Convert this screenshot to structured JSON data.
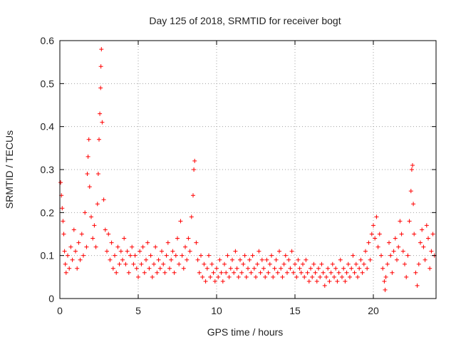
{
  "chart_data": {
    "type": "scatter",
    "title": "Day 125 of 2018, SRMTID for receiver bogt",
    "xlabel": "GPS time / hours",
    "ylabel": "SRMTID / TECUs",
    "xlim": [
      0,
      24
    ],
    "ylim": [
      0,
      0.6
    ],
    "xticks": [
      0,
      5,
      10,
      15,
      20
    ],
    "yticks": [
      0,
      0.1,
      0.2,
      0.3,
      0.4,
      0.5,
      0.6
    ],
    "grid": true,
    "marker": "+",
    "color": "#ff0000",
    "series": [
      {
        "name": "SRMTID",
        "points": [
          [
            0.05,
            0.27
          ],
          [
            0.1,
            0.24
          ],
          [
            0.15,
            0.21
          ],
          [
            0.2,
            0.18
          ],
          [
            0.25,
            0.15
          ],
          [
            0.3,
            0.11
          ],
          [
            0.35,
            0.08
          ],
          [
            0.4,
            0.06
          ],
          [
            0.5,
            0.1
          ],
          [
            0.6,
            0.07
          ],
          [
            0.7,
            0.12
          ],
          [
            0.8,
            0.09
          ],
          [
            0.9,
            0.16
          ],
          [
            1.0,
            0.11
          ],
          [
            1.1,
            0.07
          ],
          [
            1.2,
            0.13
          ],
          [
            1.3,
            0.09
          ],
          [
            1.4,
            0.15
          ],
          [
            1.5,
            0.1
          ],
          [
            1.6,
            0.2
          ],
          [
            1.7,
            0.12
          ],
          [
            1.75,
            0.29
          ],
          [
            1.8,
            0.33
          ],
          [
            1.85,
            0.37
          ],
          [
            1.9,
            0.26
          ],
          [
            2.0,
            0.19
          ],
          [
            2.1,
            0.14
          ],
          [
            2.2,
            0.17
          ],
          [
            2.3,
            0.12
          ],
          [
            2.4,
            0.22
          ],
          [
            2.45,
            0.29
          ],
          [
            2.5,
            0.37
          ],
          [
            2.55,
            0.43
          ],
          [
            2.6,
            0.49
          ],
          [
            2.62,
            0.54
          ],
          [
            2.65,
            0.58
          ],
          [
            2.7,
            0.41
          ],
          [
            2.8,
            0.23
          ],
          [
            2.9,
            0.16
          ],
          [
            3.0,
            0.11
          ],
          [
            3.1,
            0.15
          ],
          [
            3.2,
            0.09
          ],
          [
            3.3,
            0.13
          ],
          [
            3.4,
            0.07
          ],
          [
            3.5,
            0.1
          ],
          [
            3.6,
            0.06
          ],
          [
            3.7,
            0.12
          ],
          [
            3.8,
            0.08
          ],
          [
            3.9,
            0.11
          ],
          [
            4.0,
            0.09
          ],
          [
            4.1,
            0.14
          ],
          [
            4.2,
            0.08
          ],
          [
            4.3,
            0.11
          ],
          [
            4.4,
            0.06
          ],
          [
            4.5,
            0.1
          ],
          [
            4.6,
            0.12
          ],
          [
            4.7,
            0.08
          ],
          [
            4.8,
            0.1
          ],
          [
            4.9,
            0.07
          ],
          [
            5.0,
            0.05
          ],
          [
            5.1,
            0.11
          ],
          [
            5.2,
            0.08
          ],
          [
            5.3,
            0.12
          ],
          [
            5.4,
            0.06
          ],
          [
            5.5,
            0.09
          ],
          [
            5.6,
            0.13
          ],
          [
            5.7,
            0.07
          ],
          [
            5.8,
            0.1
          ],
          [
            5.9,
            0.05
          ],
          [
            6.0,
            0.08
          ],
          [
            6.1,
            0.12
          ],
          [
            6.2,
            0.06
          ],
          [
            6.3,
            0.09
          ],
          [
            6.4,
            0.07
          ],
          [
            6.5,
            0.11
          ],
          [
            6.6,
            0.08
          ],
          [
            6.7,
            0.06
          ],
          [
            6.8,
            0.1
          ],
          [
            6.9,
            0.13
          ],
          [
            7.0,
            0.07
          ],
          [
            7.1,
            0.09
          ],
          [
            7.2,
            0.11
          ],
          [
            7.3,
            0.06
          ],
          [
            7.4,
            0.1
          ],
          [
            7.5,
            0.14
          ],
          [
            7.6,
            0.08
          ],
          [
            7.7,
            0.18
          ],
          [
            7.8,
            0.1
          ],
          [
            7.9,
            0.07
          ],
          [
            8.0,
            0.12
          ],
          [
            8.1,
            0.09
          ],
          [
            8.2,
            0.14
          ],
          [
            8.3,
            0.11
          ],
          [
            8.4,
            0.19
          ],
          [
            8.5,
            0.24
          ],
          [
            8.55,
            0.3
          ],
          [
            8.6,
            0.32
          ],
          [
            8.7,
            0.13
          ],
          [
            8.8,
            0.09
          ],
          [
            8.9,
            0.06
          ],
          [
            9.0,
            0.1
          ],
          [
            9.1,
            0.05
          ],
          [
            9.2,
            0.08
          ],
          [
            9.3,
            0.04
          ],
          [
            9.4,
            0.07
          ],
          [
            9.5,
            0.1
          ],
          [
            9.6,
            0.05
          ],
          [
            9.7,
            0.08
          ],
          [
            9.8,
            0.06
          ],
          [
            9.9,
            0.04
          ],
          [
            10.0,
            0.07
          ],
          [
            10.1,
            0.05
          ],
          [
            10.2,
            0.09
          ],
          [
            10.3,
            0.06
          ],
          [
            10.4,
            0.04
          ],
          [
            10.5,
            0.08
          ],
          [
            10.6,
            0.06
          ],
          [
            10.7,
            0.1
          ],
          [
            10.8,
            0.05
          ],
          [
            10.9,
            0.07
          ],
          [
            11.0,
            0.09
          ],
          [
            11.1,
            0.06
          ],
          [
            11.2,
            0.11
          ],
          [
            11.3,
            0.07
          ],
          [
            11.4,
            0.05
          ],
          [
            11.5,
            0.09
          ],
          [
            11.6,
            0.06
          ],
          [
            11.7,
            0.08
          ],
          [
            11.8,
            0.1
          ],
          [
            11.9,
            0.05
          ],
          [
            12.0,
            0.07
          ],
          [
            12.1,
            0.09
          ],
          [
            12.2,
            0.06
          ],
          [
            12.3,
            0.1
          ],
          [
            12.4,
            0.07
          ],
          [
            12.5,
            0.05
          ],
          [
            12.6,
            0.08
          ],
          [
            12.7,
            0.11
          ],
          [
            12.8,
            0.06
          ],
          [
            12.9,
            0.09
          ],
          [
            13.0,
            0.07
          ],
          [
            13.1,
            0.05
          ],
          [
            13.2,
            0.09
          ],
          [
            13.3,
            0.06
          ],
          [
            13.4,
            0.08
          ],
          [
            13.5,
            0.1
          ],
          [
            13.6,
            0.05
          ],
          [
            13.7,
            0.07
          ],
          [
            13.8,
            0.09
          ],
          [
            13.9,
            0.06
          ],
          [
            14.0,
            0.11
          ],
          [
            14.1,
            0.07
          ],
          [
            14.2,
            0.05
          ],
          [
            14.3,
            0.08
          ],
          [
            14.4,
            0.1
          ],
          [
            14.5,
            0.06
          ],
          [
            14.6,
            0.09
          ],
          [
            14.7,
            0.07
          ],
          [
            14.8,
            0.11
          ],
          [
            14.9,
            0.06
          ],
          [
            15.0,
            0.08
          ],
          [
            15.1,
            0.05
          ],
          [
            15.2,
            0.09
          ],
          [
            15.3,
            0.07
          ],
          [
            15.4,
            0.06
          ],
          [
            15.5,
            0.08
          ],
          [
            15.6,
            0.05
          ],
          [
            15.7,
            0.09
          ],
          [
            15.8,
            0.06
          ],
          [
            15.9,
            0.04
          ],
          [
            16.0,
            0.07
          ],
          [
            16.1,
            0.05
          ],
          [
            16.2,
            0.08
          ],
          [
            16.3,
            0.06
          ],
          [
            16.4,
            0.04
          ],
          [
            16.5,
            0.07
          ],
          [
            16.6,
            0.05
          ],
          [
            16.7,
            0.08
          ],
          [
            16.8,
            0.06
          ],
          [
            16.9,
            0.03
          ],
          [
            17.0,
            0.05
          ],
          [
            17.1,
            0.07
          ],
          [
            17.2,
            0.04
          ],
          [
            17.3,
            0.06
          ],
          [
            17.4,
            0.08
          ],
          [
            17.5,
            0.05
          ],
          [
            17.6,
            0.07
          ],
          [
            17.7,
            0.04
          ],
          [
            17.8,
            0.06
          ],
          [
            17.9,
            0.09
          ],
          [
            18.0,
            0.05
          ],
          [
            18.1,
            0.07
          ],
          [
            18.2,
            0.04
          ],
          [
            18.3,
            0.06
          ],
          [
            18.4,
            0.08
          ],
          [
            18.5,
            0.05
          ],
          [
            18.6,
            0.07
          ],
          [
            18.7,
            0.1
          ],
          [
            18.8,
            0.06
          ],
          [
            18.9,
            0.08
          ],
          [
            19.0,
            0.05
          ],
          [
            19.1,
            0.07
          ],
          [
            19.2,
            0.09
          ],
          [
            19.3,
            0.06
          ],
          [
            19.4,
            0.08
          ],
          [
            19.5,
            0.11
          ],
          [
            19.6,
            0.07
          ],
          [
            19.7,
            0.13
          ],
          [
            19.8,
            0.09
          ],
          [
            19.9,
            0.15
          ],
          [
            20.0,
            0.17
          ],
          [
            20.1,
            0.14
          ],
          [
            20.2,
            0.19
          ],
          [
            20.3,
            0.12
          ],
          [
            20.4,
            0.15
          ],
          [
            20.5,
            0.1
          ],
          [
            20.6,
            0.07
          ],
          [
            20.7,
            0.04
          ],
          [
            20.75,
            0.02
          ],
          [
            20.8,
            0.05
          ],
          [
            20.9,
            0.08
          ],
          [
            21.0,
            0.13
          ],
          [
            21.1,
            0.1
          ],
          [
            21.2,
            0.06
          ],
          [
            21.3,
            0.11
          ],
          [
            21.4,
            0.14
          ],
          [
            21.5,
            0.09
          ],
          [
            21.6,
            0.12
          ],
          [
            21.7,
            0.18
          ],
          [
            21.8,
            0.15
          ],
          [
            21.9,
            0.11
          ],
          [
            22.0,
            0.08
          ],
          [
            22.1,
            0.05
          ],
          [
            22.2,
            0.1
          ],
          [
            22.3,
            0.18
          ],
          [
            22.4,
            0.25
          ],
          [
            22.45,
            0.3
          ],
          [
            22.5,
            0.31
          ],
          [
            22.55,
            0.22
          ],
          [
            22.6,
            0.15
          ],
          [
            22.7,
            0.06
          ],
          [
            22.8,
            0.03
          ],
          [
            22.9,
            0.08
          ],
          [
            23.0,
            0.13
          ],
          [
            23.1,
            0.16
          ],
          [
            23.2,
            0.12
          ],
          [
            23.3,
            0.09
          ],
          [
            23.4,
            0.17
          ],
          [
            23.5,
            0.14
          ],
          [
            23.6,
            0.07
          ],
          [
            23.7,
            0.11
          ],
          [
            23.8,
            0.15
          ],
          [
            23.9,
            0.1
          ]
        ]
      }
    ]
  }
}
